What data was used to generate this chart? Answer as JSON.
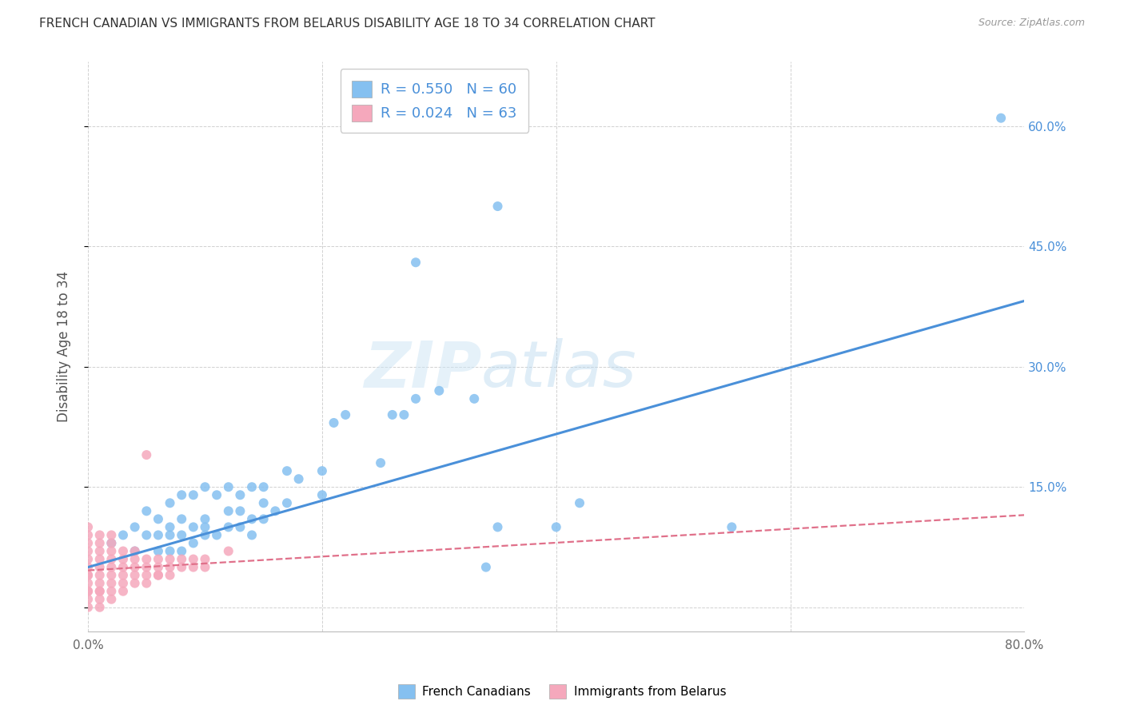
{
  "title": "FRENCH CANADIAN VS IMMIGRANTS FROM BELARUS DISABILITY AGE 18 TO 34 CORRELATION CHART",
  "source": "Source: ZipAtlas.com",
  "ylabel": "Disability Age 18 to 34",
  "xlim": [
    0.0,
    0.8
  ],
  "ylim": [
    -0.03,
    0.68
  ],
  "blue_color": "#85C0F0",
  "pink_color": "#F5A8BC",
  "blue_line_color": "#4A90D9",
  "pink_line_color": "#E0708A",
  "legend_r_blue": "R = 0.550",
  "legend_n_blue": "N = 60",
  "legend_r_pink": "R = 0.024",
  "legend_n_pink": "N = 63",
  "legend_label_blue": "French Canadians",
  "legend_label_pink": "Immigrants from Belarus",
  "watermark": "ZIPatlas",
  "title_color": "#333333",
  "source_color": "#999999",
  "axis_label_color": "#555555",
  "right_axis_color": "#4A90D9",
  "blue_line_start_x": 0.0,
  "blue_line_start_y": 0.05,
  "blue_line_end_x": 0.8,
  "blue_line_end_y": 0.382,
  "pink_line_start_x": 0.0,
  "pink_line_start_y": 0.046,
  "pink_line_end_x": 0.8,
  "pink_line_end_y": 0.115,
  "blue_scatter_x": [
    0.02,
    0.03,
    0.04,
    0.04,
    0.05,
    0.05,
    0.06,
    0.06,
    0.06,
    0.07,
    0.07,
    0.07,
    0.07,
    0.08,
    0.08,
    0.08,
    0.08,
    0.09,
    0.09,
    0.09,
    0.1,
    0.1,
    0.1,
    0.1,
    0.11,
    0.11,
    0.12,
    0.12,
    0.12,
    0.13,
    0.13,
    0.13,
    0.14,
    0.14,
    0.14,
    0.15,
    0.15,
    0.15,
    0.16,
    0.17,
    0.17,
    0.18,
    0.2,
    0.2,
    0.21,
    0.22,
    0.25,
    0.26,
    0.27,
    0.28,
    0.3,
    0.33,
    0.34,
    0.35,
    0.4,
    0.42,
    0.55,
    0.28,
    0.35,
    0.78
  ],
  "blue_scatter_y": [
    0.08,
    0.09,
    0.07,
    0.1,
    0.09,
    0.12,
    0.07,
    0.09,
    0.11,
    0.07,
    0.09,
    0.1,
    0.13,
    0.07,
    0.09,
    0.11,
    0.14,
    0.08,
    0.1,
    0.14,
    0.09,
    0.1,
    0.11,
    0.15,
    0.09,
    0.14,
    0.1,
    0.12,
    0.15,
    0.1,
    0.12,
    0.14,
    0.09,
    0.11,
    0.15,
    0.11,
    0.13,
    0.15,
    0.12,
    0.13,
    0.17,
    0.16,
    0.14,
    0.17,
    0.23,
    0.24,
    0.18,
    0.24,
    0.24,
    0.26,
    0.27,
    0.26,
    0.05,
    0.1,
    0.1,
    0.13,
    0.1,
    0.43,
    0.5,
    0.61
  ],
  "pink_scatter_x": [
    0.0,
    0.0,
    0.0,
    0.0,
    0.0,
    0.0,
    0.0,
    0.0,
    0.0,
    0.0,
    0.01,
    0.01,
    0.01,
    0.01,
    0.01,
    0.01,
    0.01,
    0.01,
    0.02,
    0.02,
    0.02,
    0.02,
    0.02,
    0.02,
    0.02,
    0.03,
    0.03,
    0.03,
    0.03,
    0.03,
    0.04,
    0.04,
    0.04,
    0.04,
    0.05,
    0.05,
    0.05,
    0.05,
    0.06,
    0.06,
    0.06,
    0.07,
    0.07,
    0.08,
    0.09,
    0.1,
    0.12,
    0.0,
    0.0,
    0.01,
    0.01,
    0.02,
    0.03,
    0.04,
    0.05,
    0.06,
    0.07,
    0.08,
    0.09,
    0.1,
    0.0,
    0.01,
    0.02
  ],
  "pink_scatter_y": [
    0.02,
    0.03,
    0.04,
    0.05,
    0.06,
    0.07,
    0.08,
    0.09,
    0.1,
    0.04,
    0.02,
    0.03,
    0.04,
    0.05,
    0.06,
    0.07,
    0.08,
    0.09,
    0.03,
    0.04,
    0.05,
    0.06,
    0.07,
    0.08,
    0.09,
    0.03,
    0.04,
    0.05,
    0.06,
    0.07,
    0.04,
    0.05,
    0.06,
    0.07,
    0.04,
    0.05,
    0.06,
    0.19,
    0.04,
    0.05,
    0.06,
    0.05,
    0.06,
    0.06,
    0.06,
    0.06,
    0.07,
    0.01,
    0.02,
    0.01,
    0.02,
    0.02,
    0.02,
    0.03,
    0.03,
    0.04,
    0.04,
    0.05,
    0.05,
    0.05,
    0.0,
    0.0,
    0.01
  ]
}
